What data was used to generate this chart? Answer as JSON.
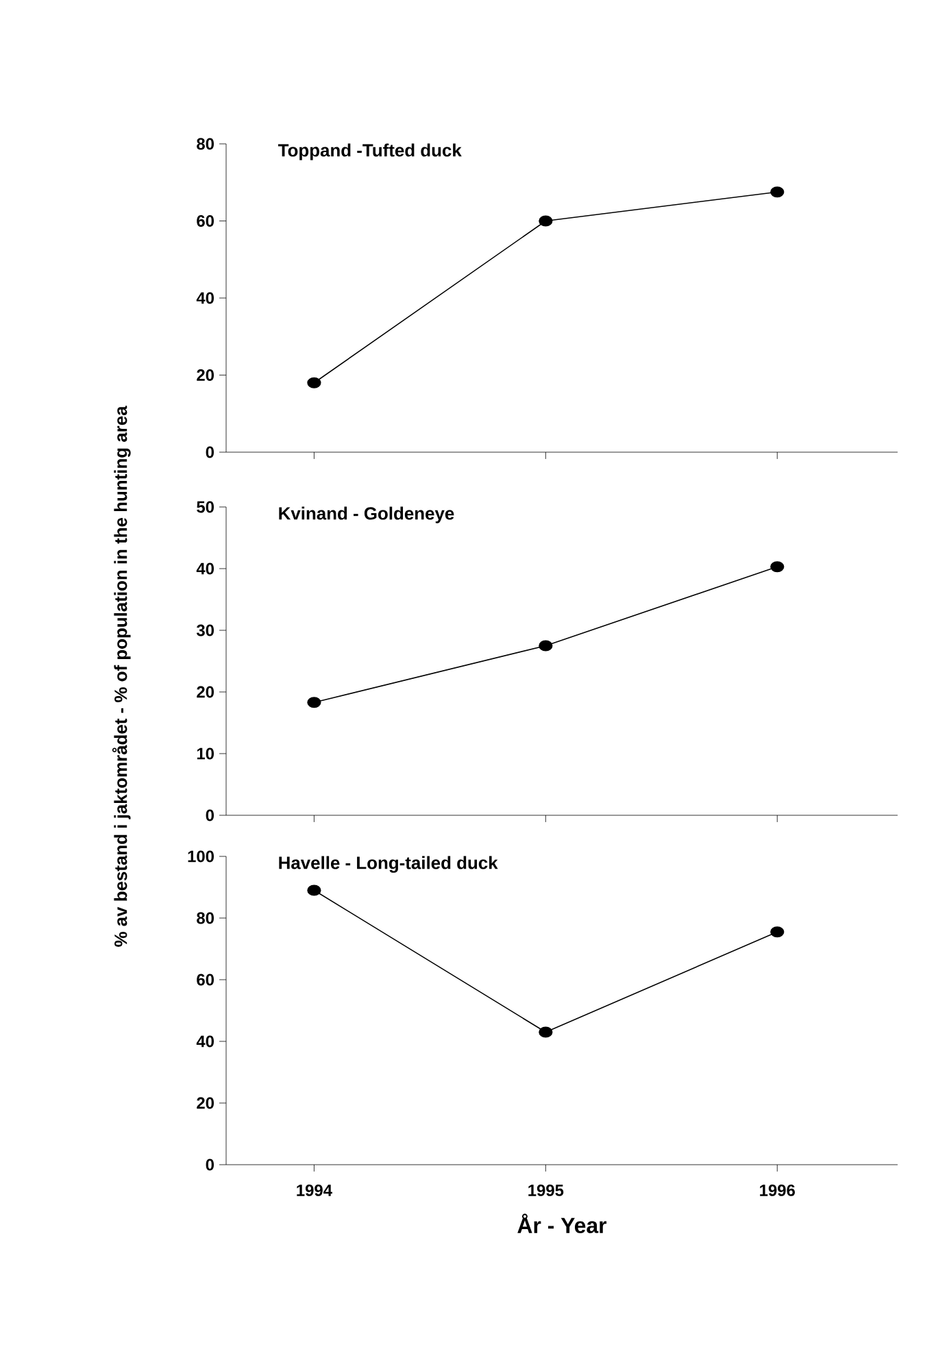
{
  "chart_data": [
    {
      "type": "line",
      "title": "Toppand -Tufted duck",
      "categories": [
        "1994",
        "1995",
        "1996"
      ],
      "series": [
        {
          "color": "#000000",
          "values": [
            18,
            60,
            67.5
          ]
        }
      ],
      "ylim": [
        0,
        80
      ],
      "yticks": [
        0,
        20,
        40,
        60,
        80
      ],
      "marker": "circle",
      "tick_labels": "y"
    },
    {
      "type": "line",
      "title": "Kvinand - Goldeneye",
      "ylabel": "% av bestand i jaktområdet - % of population in the hunting area",
      "categories": [
        "1994",
        "1995",
        "1996"
      ],
      "series": [
        {
          "color": "#000000",
          "values": [
            18.3,
            27.5,
            40.3
          ]
        }
      ],
      "ylim": [
        0,
        50
      ],
      "yticks": [
        0,
        10,
        20,
        30,
        40,
        50
      ],
      "marker": "circle",
      "tick_labels": "y"
    },
    {
      "type": "line",
      "title": "Havelle - Long-tailed duck",
      "xlabel": "År - Year",
      "categories": [
        "1994",
        "1995",
        "1996"
      ],
      "series": [
        {
          "color": "#000000",
          "values": [
            89,
            43,
            75.5
          ]
        }
      ],
      "ylim": [
        0,
        100
      ],
      "yticks": [
        0,
        20,
        40,
        60,
        80,
        100
      ],
      "marker": "circle"
    }
  ]
}
